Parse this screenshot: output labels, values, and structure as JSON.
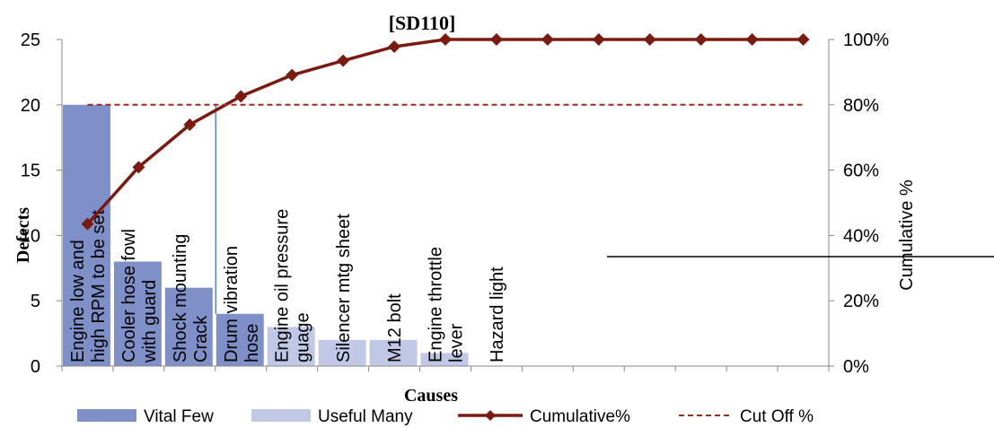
{
  "chart_data": {
    "type": "bar",
    "title": "[SD110]",
    "xlabel": "Causes",
    "ylabel": "Defects",
    "y2label": "Cumulative %",
    "ylim": [
      0,
      25
    ],
    "yticks": [
      "0",
      "5",
      "10",
      "15",
      "20",
      "25"
    ],
    "y2lim": [
      0,
      100
    ],
    "y2ticks": [
      "0%",
      "20%",
      "40%",
      "60%",
      "80%",
      "100%"
    ],
    "categories": [
      "Engine low and high RPM to be set",
      "Cooler hose fowl with guard",
      "Shock mounting Crack",
      "Drum vibration hose",
      "Engine oil pressure guage",
      "Silencer mtg sheet",
      "M12 bolt",
      "Engine throttle lever",
      "Hazard light",
      "",
      "",
      "",
      "",
      "",
      ""
    ],
    "category_labels": [
      [
        "Engine low and",
        "high RPM to be set"
      ],
      [
        "Cooler hose fowl",
        "with guard"
      ],
      [
        "Shock mounting",
        "Crack"
      ],
      [
        "Drum vibration",
        "hose"
      ],
      [
        "Engine oil pressure",
        "guage"
      ],
      [
        "Silencer mtg sheet"
      ],
      [
        "M12 bolt"
      ],
      [
        "Engine throttle",
        "lever"
      ],
      [
        "Hazard light"
      ]
    ],
    "series": [
      {
        "name": "Vital Few",
        "kind": "bar",
        "axis": "left",
        "color": "#7f8fc8",
        "values": [
          20,
          8,
          6,
          4,
          null,
          null,
          null,
          null,
          null,
          null,
          null,
          null,
          null,
          null,
          null
        ]
      },
      {
        "name": "Useful Many",
        "kind": "bar",
        "axis": "left",
        "color": "#c0c8e6",
        "values": [
          null,
          null,
          null,
          null,
          3,
          2,
          2,
          1,
          null,
          null,
          null,
          null,
          null,
          null,
          null
        ]
      },
      {
        "name": "Cumulative%",
        "kind": "line",
        "axis": "right",
        "color": "#7b1a10",
        "marker": "diamond",
        "values": [
          43.5,
          60.9,
          73.9,
          82.6,
          89.1,
          93.5,
          97.8,
          100,
          100,
          100,
          100,
          100,
          100,
          100,
          100
        ]
      },
      {
        "name": "Cut Off %",
        "kind": "line",
        "axis": "right",
        "color": "#9b2b1d",
        "dash": true,
        "values": [
          80,
          80,
          80,
          80,
          80,
          80,
          80,
          80,
          80,
          80,
          80,
          80,
          80,
          80,
          80
        ]
      }
    ],
    "legend": "bottom",
    "grid": false
  }
}
